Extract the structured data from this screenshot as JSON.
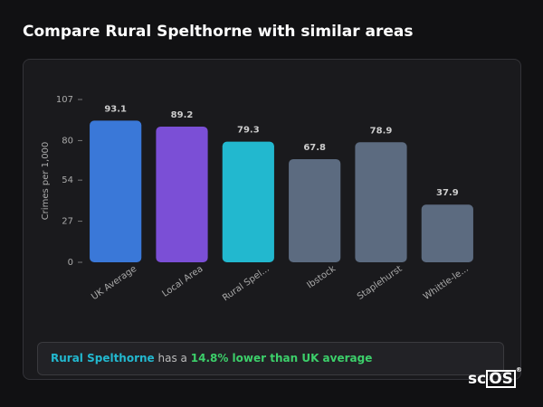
{
  "header": {
    "title": "Compare Rural Spelthorne with similar areas"
  },
  "chart_data": {
    "type": "bar",
    "y_label": "Crimes per 1,000",
    "categories": [
      "UK Average",
      "Local Area",
      "Rural Spel...",
      "Ibstock",
      "Staplehurst",
      "Whittle-le..."
    ],
    "values": [
      93.1,
      89.2,
      79.3,
      67.8,
      78.9,
      37.9
    ],
    "colors": [
      "#3a78d8",
      "#7b4fd6",
      "#22b8cf",
      "#5c6b80",
      "#5c6b80",
      "#5c6b80"
    ],
    "ylim": [
      0,
      107
    ],
    "yticks": [
      0,
      27,
      54,
      80,
      107
    ],
    "grid": false
  },
  "summary": {
    "area": "Rural Spelthorne",
    "middle": "has a",
    "highlight": "14.8% lower than UK average"
  },
  "logo": {
    "left": "sc",
    "boxed": "OS",
    "mark": "®"
  }
}
